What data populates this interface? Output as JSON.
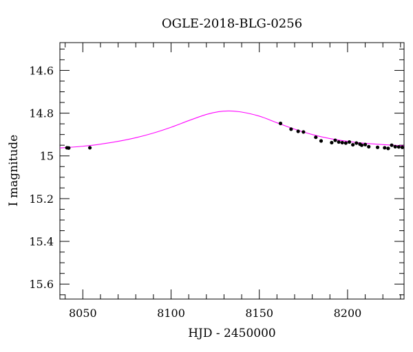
{
  "chart_data": {
    "type": "scatter",
    "title": "OGLE-2018-BLG-0256",
    "xlabel": "HJD - 2450000",
    "ylabel": "I magnitude",
    "xlim": [
      8037,
      8232
    ],
    "ylim": [
      15.67,
      14.47
    ],
    "y_inverted": true,
    "grid": false,
    "legend": "none",
    "x_major_ticks": [
      8050,
      8100,
      8150,
      8200
    ],
    "x_tick_labels": [
      "8050",
      "8100",
      "8150",
      "8200"
    ],
    "y_major_ticks": [
      14.6,
      14.8,
      15.0,
      15.2,
      15.4,
      15.6
    ],
    "y_tick_labels": [
      "14.6",
      "14.8",
      "15",
      "15.2",
      "15.4",
      "15.6"
    ],
    "colors": {
      "points": "#000000",
      "model": "#ff00ff",
      "axes": "#000000"
    },
    "model": {
      "type": "microlensing-fit-curve",
      "x": [
        8037,
        8050,
        8060,
        8070,
        8080,
        8090,
        8100,
        8110,
        8120,
        8127,
        8133,
        8140,
        8150,
        8160,
        8170,
        8180,
        8190,
        8200,
        8210,
        8220,
        8232
      ],
      "y": [
        14.963,
        14.955,
        14.945,
        14.932,
        14.915,
        14.893,
        14.866,
        14.835,
        14.806,
        14.793,
        14.79,
        14.795,
        14.814,
        14.845,
        14.875,
        14.9,
        14.919,
        14.932,
        14.941,
        14.947,
        14.953
      ]
    },
    "series": [
      {
        "x": [
          8041,
          8042,
          8054,
          8162,
          8168,
          8172,
          8175,
          8182,
          8185,
          8191,
          8193,
          8195,
          8197,
          8199,
          8201,
          8203,
          8205,
          8207,
          8208,
          8210,
          8212,
          8217,
          8221,
          8223,
          8225,
          8227,
          8229,
          8231
        ],
        "y": [
          14.962,
          14.963,
          14.962,
          14.848,
          14.875,
          14.885,
          14.888,
          14.913,
          14.93,
          14.938,
          14.927,
          14.935,
          14.938,
          14.94,
          14.935,
          14.948,
          14.94,
          14.945,
          14.95,
          14.947,
          14.957,
          14.96,
          14.962,
          14.965,
          14.95,
          14.957,
          14.958,
          14.96
        ]
      }
    ]
  }
}
